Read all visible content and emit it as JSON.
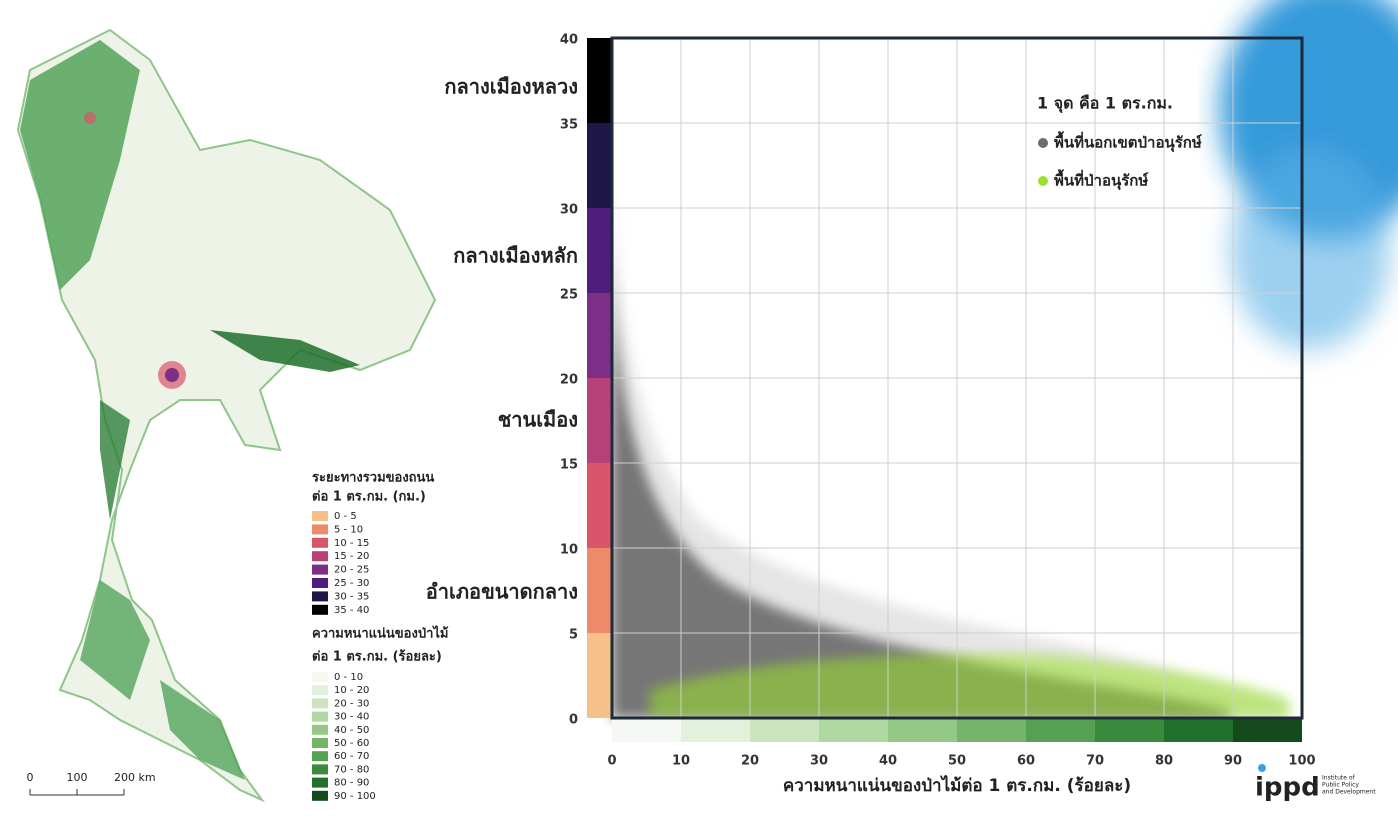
{
  "chart_data": {
    "type": "scatter",
    "x_label": "ความหนาแน่นของป่าไม้ต่อ 1 ตร.กม. (ร้อยละ)",
    "annotations": [
      "กลางเมืองหลวง",
      "กลางเมืองหลัก",
      "ชานเมือง",
      "อำเภอขนาดกลาง"
    ],
    "legend_title": "1 จุด คือ 1 ตร.กม.",
    "series": [
      {
        "name": "พื้นที่นอกเขตป่าอนุรักษ์",
        "color": "#6b6b6b"
      },
      {
        "name": "พื้นที่ป่าอนุรักษ์",
        "color": "#9be22c"
      }
    ],
    "xlim": [
      0,
      100
    ],
    "xticks": [
      0,
      10,
      20,
      30,
      40,
      50,
      60,
      70,
      80,
      90,
      100
    ],
    "ylim": [
      0,
      40
    ],
    "yticks": [
      0,
      5,
      10,
      15,
      20,
      25,
      30,
      35,
      40
    ],
    "grid": true
  },
  "map": {
    "road_legend": {
      "title": [
        "ระยะทางรวมของถนน",
        "ต่อ 1 ตร.กม. (กม.)"
      ],
      "items": [
        {
          "label": "0 - 5",
          "color": "#f5c08a"
        },
        {
          "label": "5 - 10",
          "color": "#ec8a6a"
        },
        {
          "label": "10 - 15",
          "color": "#d9566a"
        },
        {
          "label": "15 - 20",
          "color": "#b84277"
        },
        {
          "label": "20 - 25",
          "color": "#7d2e86"
        },
        {
          "label": "25 - 30",
          "color": "#4e1d7e"
        },
        {
          "label": "30 - 35",
          "color": "#1f1745"
        },
        {
          "label": "35 - 40",
          "color": "#000000"
        }
      ]
    },
    "forest_legend": {
      "title": [
        "ความหนาแน่นของป่าไม้",
        "ต่อ 1 ตร.กม. (ร้อยละ)"
      ],
      "items": [
        {
          "label": "0 - 10",
          "color": "#f6f8f3"
        },
        {
          "label": "10 - 20",
          "color": "#e3f1dc"
        },
        {
          "label": "20 - 30",
          "color": "#cbe6bf"
        },
        {
          "label": "30 - 40",
          "color": "#b0d9a2"
        },
        {
          "label": "40 - 50",
          "color": "#93c985"
        },
        {
          "label": "50 - 60",
          "color": "#74b56a"
        },
        {
          "label": "60 - 70",
          "color": "#55a052"
        },
        {
          "label": "70 - 80",
          "color": "#3a8a3e"
        },
        {
          "label": "80 - 90",
          "color": "#236f2c"
        },
        {
          "label": "90 - 100",
          "color": "#13491b"
        }
      ]
    },
    "scale_bar": [
      "0",
      "100",
      "200 km"
    ]
  },
  "logo": {
    "name": "ippd",
    "tagline": [
      "Institute of",
      "Public Policy",
      "and Development"
    ]
  }
}
